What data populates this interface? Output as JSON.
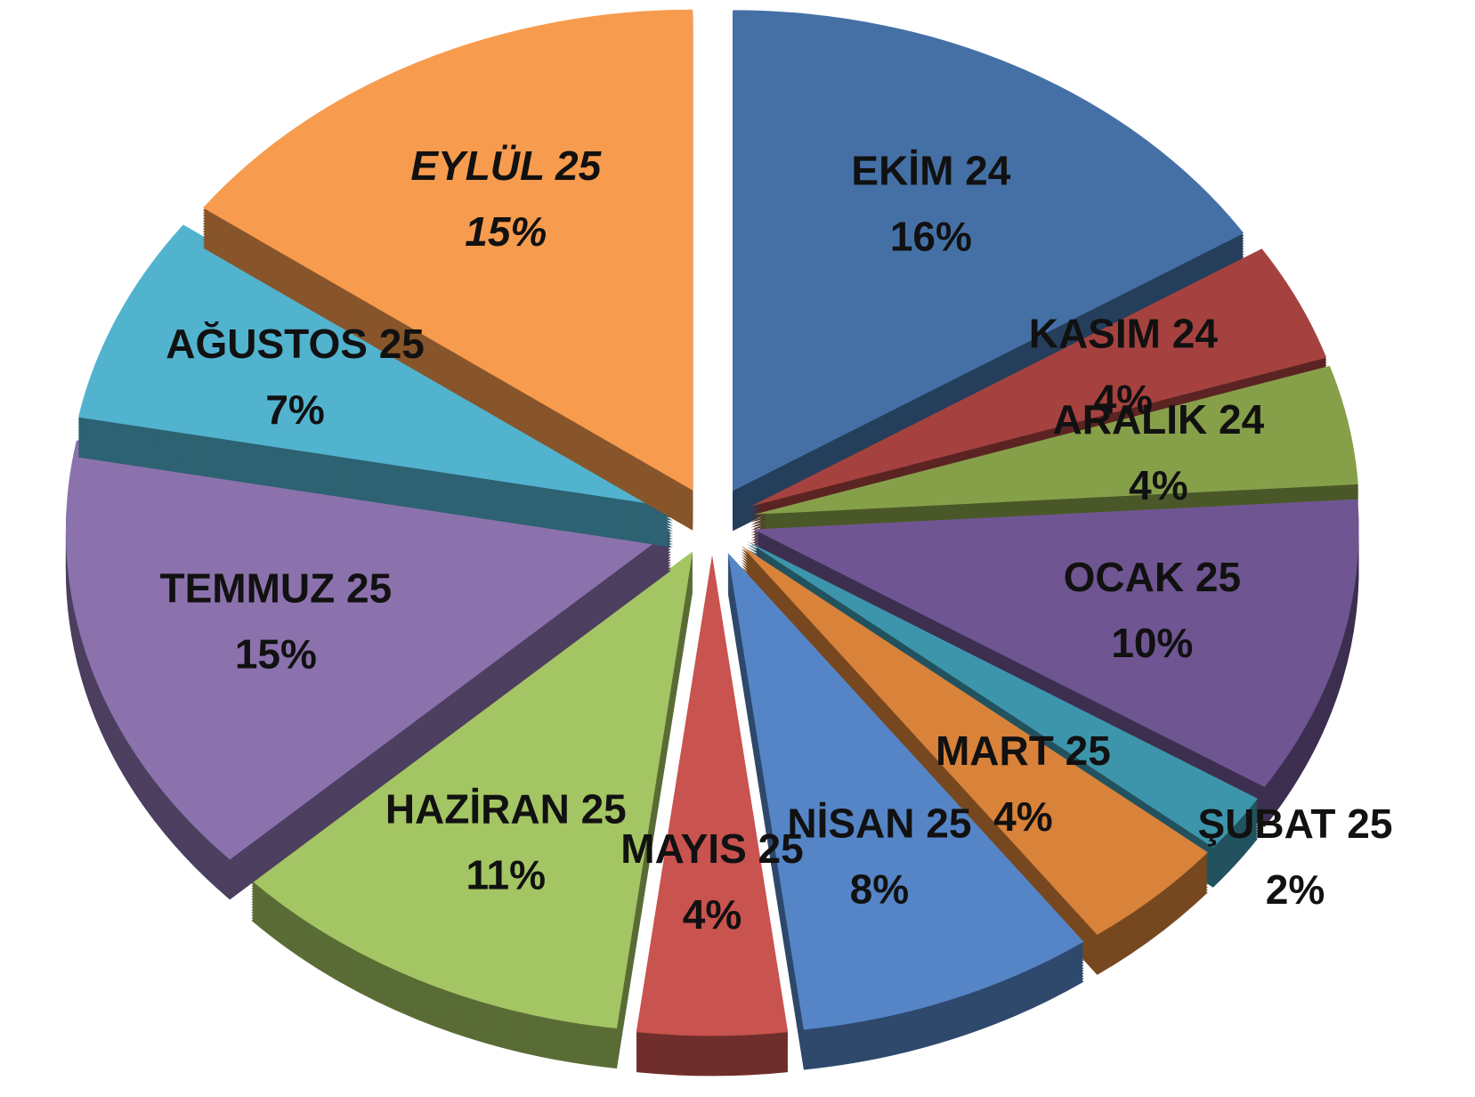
{
  "chart_data": {
    "type": "pie",
    "categories": [
      "EKİM 24",
      "KASIM 24",
      "ARALIK 24",
      "OCAK 25",
      "ŞUBAT 25",
      "MART 25",
      "NİSAN 25",
      "MAYIS 25",
      "HAZİRAN 25",
      "TEMMUZ 25",
      "AĞUSTOS 25",
      "EYLÜL 25"
    ],
    "values": [
      16,
      4,
      4,
      10,
      2,
      4,
      8,
      4,
      11,
      15,
      7,
      15
    ],
    "value_labels": [
      "16%",
      "4%",
      "4%",
      "10%",
      "2%",
      "4%",
      "8%",
      "4%",
      "11%",
      "15%",
      "7%",
      "15%"
    ],
    "colors": [
      "#4470a6",
      "#a5423f",
      "#86a04a",
      "#6f5592",
      "#3d95ab",
      "#d9823a",
      "#5585c6",
      "#c9534f",
      "#a4c563",
      "#8b72ad",
      "#52b3cf",
      "#f79b4e"
    ],
    "highlight": 11,
    "highlight_color": "#ff0000"
  }
}
